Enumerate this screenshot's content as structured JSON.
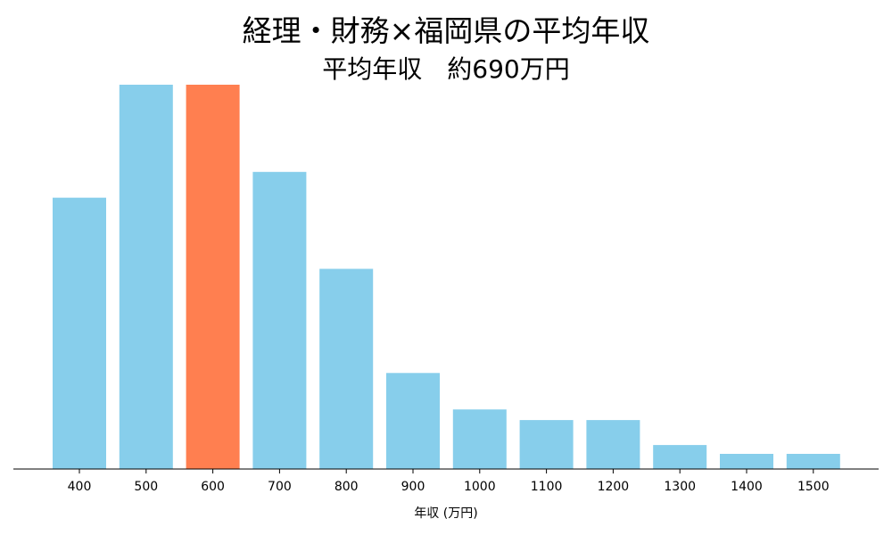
{
  "title": "経理・財務×福岡県の平均年収",
  "subtitle": "平均年収　約690万円",
  "chart_data": {
    "type": "bar",
    "categories": [
      "400",
      "500",
      "600",
      "700",
      "800",
      "900",
      "1000",
      "1100",
      "1200",
      "1300",
      "1400",
      "1500"
    ],
    "values": [
      305,
      432,
      432,
      334,
      225,
      108,
      67,
      55,
      55,
      27,
      17,
      17
    ],
    "highlight_category": "600",
    "xlabel": "年収 (万円)",
    "ylabel": "",
    "ylim": [
      0,
      432
    ],
    "grid": false,
    "colors": {
      "bar": "#87CEEB",
      "highlight": "#FF7F50",
      "axis": "#000000"
    }
  }
}
